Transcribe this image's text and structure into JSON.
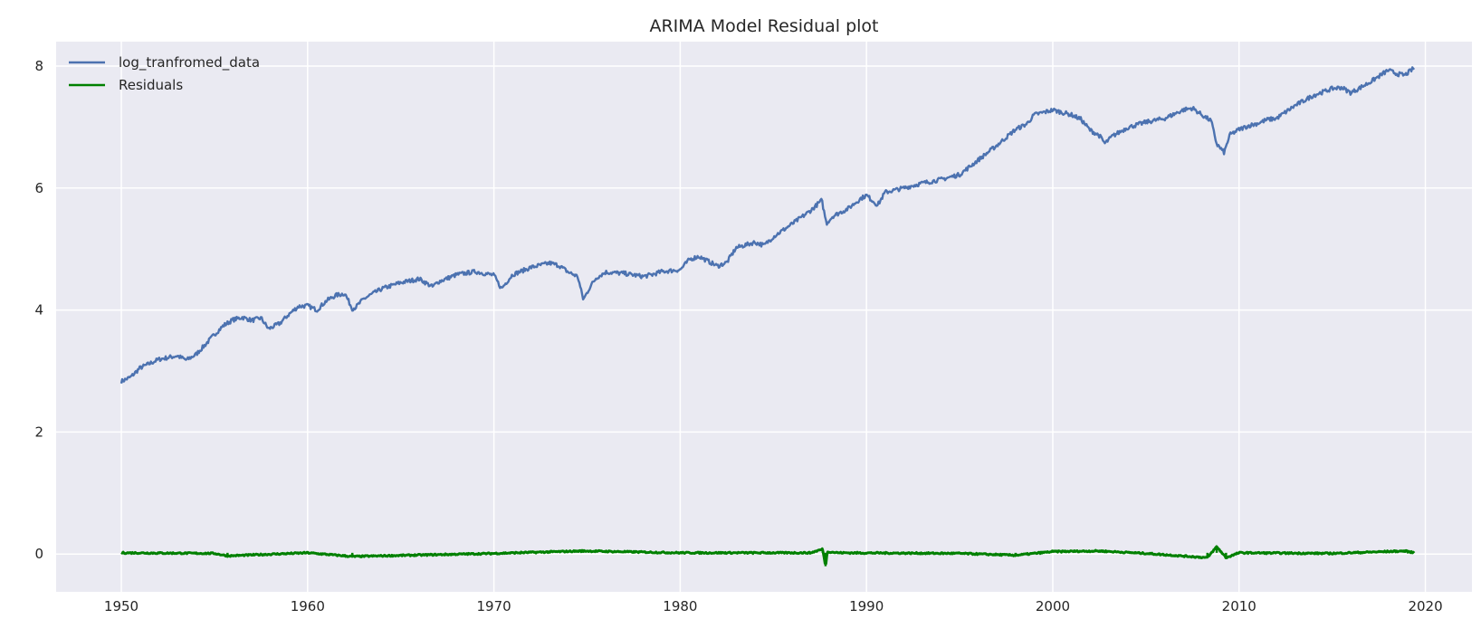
{
  "chart_data": {
    "type": "line",
    "title": "ARIMA Model Residual plot",
    "xlabel": "",
    "ylabel": "",
    "xlim": [
      1946.5,
      2022.5
    ],
    "ylim": [
      -0.62,
      8.4
    ],
    "xticks": [
      1950,
      1960,
      1970,
      1980,
      1990,
      2000,
      2010,
      2020
    ],
    "yticks": [
      0,
      2,
      4,
      6,
      8
    ],
    "grid": true,
    "legend": "top-left",
    "background": "#eaeaf2",
    "series": [
      {
        "name": "log_tranfromed_data",
        "color": "#4c72b0",
        "x": [
          1950.0,
          1950.5,
          1951.0,
          1951.5,
          1952.0,
          1952.5,
          1953.0,
          1953.5,
          1954.0,
          1954.5,
          1955.0,
          1955.5,
          1956.0,
          1956.5,
          1957.0,
          1957.5,
          1957.9,
          1958.5,
          1959.0,
          1959.5,
          1960.0,
          1960.5,
          1961.0,
          1961.5,
          1962.0,
          1962.4,
          1962.6,
          1963.0,
          1963.5,
          1964.0,
          1965.0,
          1966.0,
          1966.7,
          1967.0,
          1968.0,
          1969.0,
          1970.0,
          1970.4,
          1971.0,
          1972.0,
          1973.0,
          1973.5,
          1974.0,
          1974.5,
          1974.8,
          1975.2,
          1975.5,
          1976.0,
          1977.0,
          1978.0,
          1978.5,
          1979.0,
          1980.0,
          1980.5,
          1981.0,
          1982.0,
          1982.5,
          1983.0,
          1984.0,
          1984.5,
          1985.0,
          1986.0,
          1987.0,
          1987.6,
          1987.85,
          1988.2,
          1989.0,
          1989.7,
          1990.0,
          1990.6,
          1991.0,
          1992.0,
          1993.0,
          1994.0,
          1995.0,
          1996.0,
          1997.0,
          1998.0,
          1998.6,
          1999.0,
          2000.0,
          2000.5,
          2001.0,
          2001.5,
          2002.0,
          2002.5,
          2002.8,
          2003.2,
          2004.0,
          2005.0,
          2006.0,
          2007.0,
          2007.5,
          2008.0,
          2008.5,
          2008.8,
          2009.2,
          2009.5,
          2010.0,
          2010.5,
          2011.0,
          2011.5,
          2012.0,
          2013.0,
          2014.0,
          2015.0,
          2015.5,
          2016.0,
          2017.0,
          2018.0,
          2018.5,
          2018.9,
          2019.4
        ],
        "y": [
          2.83,
          2.9,
          3.05,
          3.12,
          3.19,
          3.22,
          3.25,
          3.18,
          3.27,
          3.43,
          3.6,
          3.75,
          3.84,
          3.88,
          3.83,
          3.87,
          3.69,
          3.78,
          3.93,
          4.06,
          4.07,
          4.0,
          4.15,
          4.24,
          4.27,
          4.02,
          4.05,
          4.18,
          4.27,
          4.35,
          4.45,
          4.51,
          4.38,
          4.46,
          4.58,
          4.63,
          4.57,
          4.35,
          4.58,
          4.7,
          4.77,
          4.73,
          4.62,
          4.55,
          4.17,
          4.4,
          4.53,
          4.62,
          4.6,
          4.55,
          4.58,
          4.63,
          4.66,
          4.83,
          4.88,
          4.72,
          4.78,
          5.02,
          5.11,
          5.06,
          5.2,
          5.41,
          5.63,
          5.8,
          5.42,
          5.54,
          5.66,
          5.83,
          5.88,
          5.72,
          5.93,
          6.0,
          6.08,
          6.14,
          6.22,
          6.46,
          6.7,
          6.96,
          7.05,
          7.2,
          7.28,
          7.24,
          7.2,
          7.13,
          6.95,
          6.86,
          6.73,
          6.85,
          6.99,
          7.08,
          7.14,
          7.28,
          7.31,
          7.2,
          7.1,
          6.72,
          6.58,
          6.87,
          6.96,
          7.02,
          7.06,
          7.12,
          7.14,
          7.35,
          7.52,
          7.63,
          7.65,
          7.56,
          7.73,
          7.93,
          7.87,
          7.85,
          7.97
        ]
      },
      {
        "name": "Residuals",
        "color": "#008000",
        "x": [
          1950.0,
          1955.0,
          1955.7,
          1960.0,
          1962.4,
          1970.0,
          1974.8,
          1980.0,
          1987.0,
          1987.65,
          1987.8,
          1987.9,
          1988.5,
          1995.0,
          1998.0,
          2000.0,
          2002.5,
          2005.0,
          2008.3,
          2008.8,
          2009.3,
          2010.0,
          2015.0,
          2018.9,
          2019.4
        ],
        "y": [
          0.02,
          0.01,
          -0.03,
          0.02,
          -0.04,
          0.01,
          0.05,
          0.02,
          0.02,
          0.08,
          -0.2,
          0.04,
          0.02,
          0.01,
          -0.02,
          0.04,
          0.05,
          0.01,
          -0.06,
          0.12,
          -0.06,
          0.02,
          0.01,
          0.05,
          0.02
        ]
      }
    ]
  }
}
